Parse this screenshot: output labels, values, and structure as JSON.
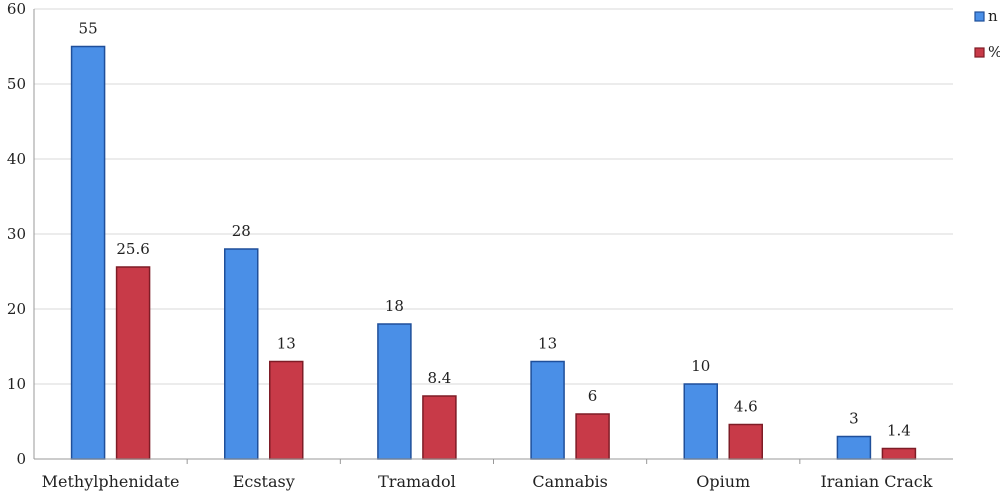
{
  "chart_data": {
    "type": "bar",
    "categories": [
      "Methylphenidate",
      "Ecstasy",
      "Tramadol",
      "Cannabis",
      "Opium",
      "Iranian Crack"
    ],
    "series": [
      {
        "name": "n",
        "values": [
          55,
          28,
          18,
          13,
          10,
          3
        ],
        "labels": [
          "55",
          "28",
          "18",
          "13",
          "10",
          "3"
        ],
        "color": "#4a8fe7",
        "stroke": "#1f4f9a"
      },
      {
        "name": "%",
        "values": [
          25.6,
          13,
          8.4,
          6,
          4.6,
          1.4
        ],
        "labels": [
          "25.6",
          "13",
          "8.4",
          "6",
          "4.6",
          "1.4"
        ],
        "color": "#c83a48",
        "stroke": "#7e1c26"
      }
    ],
    "ylim": [
      0,
      60
    ],
    "yticks": [
      0,
      10,
      20,
      30,
      40,
      50,
      60
    ],
    "grid": true,
    "legend": "top-right",
    "title": "",
    "xlabel": "",
    "ylabel": ""
  }
}
